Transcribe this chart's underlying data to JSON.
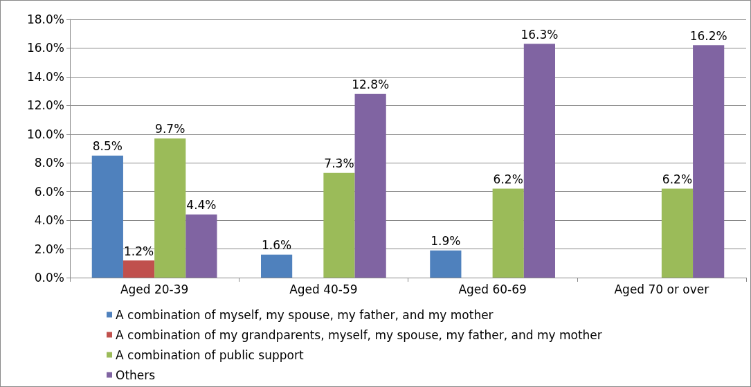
{
  "chart_data": {
    "type": "bar",
    "categories": [
      "Aged 20-39",
      "Aged 40-59",
      "Aged 60-69",
      "Aged 70 or over"
    ],
    "series": [
      {
        "name": "A combination of myself, my spouse, my father, and my mother",
        "color": "#4f81bd",
        "values": [
          8.5,
          1.6,
          1.9,
          null
        ],
        "value_labels": [
          "8.5%",
          "1.6%",
          "1.9%",
          null
        ]
      },
      {
        "name": "A combination of my grandparents, myself, my spouse, my father, and my mother",
        "color": "#c0504d",
        "values": [
          1.2,
          null,
          null,
          null
        ],
        "value_labels": [
          "1.2%",
          null,
          null,
          null
        ]
      },
      {
        "name": "A combination of public support",
        "color": "#9bbb59",
        "values": [
          9.7,
          7.3,
          6.2,
          6.2
        ],
        "value_labels": [
          "9.7%",
          "7.3%",
          "6.2%",
          "6.2%"
        ]
      },
      {
        "name": "Others",
        "color": "#8064a2",
        "values": [
          4.4,
          12.8,
          16.3,
          16.2
        ],
        "value_labels": [
          "4.4%",
          "12.8%",
          "16.3%",
          "16.2%"
        ]
      }
    ],
    "ylim": [
      0,
      18
    ],
    "yticks": [
      {
        "value": 0,
        "label": "0.0%"
      },
      {
        "value": 2,
        "label": "2.0%"
      },
      {
        "value": 4,
        "label": "4.0%"
      },
      {
        "value": 6,
        "label": "6.0%"
      },
      {
        "value": 8,
        "label": "8.0%"
      },
      {
        "value": 10,
        "label": "10.0%"
      },
      {
        "value": 12,
        "label": "12.0%"
      },
      {
        "value": 14,
        "label": "14.0%"
      },
      {
        "value": 16,
        "label": "16.0%"
      },
      {
        "value": 18,
        "label": "18.0%"
      }
    ],
    "grid": true,
    "legend": "bottom"
  }
}
